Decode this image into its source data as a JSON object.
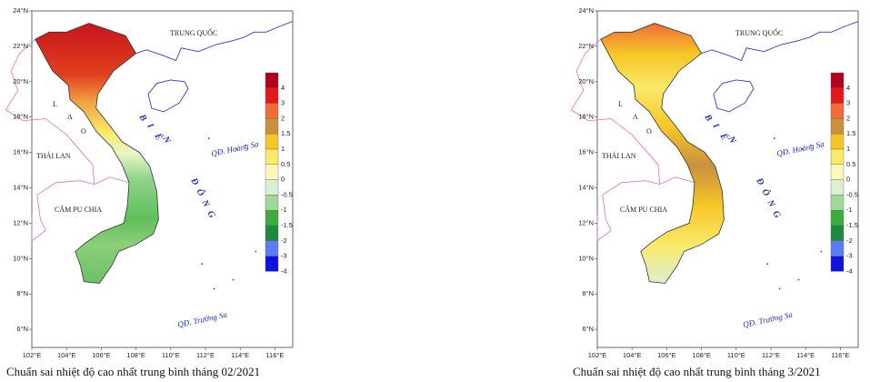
{
  "panels": [
    {
      "caption": "Chuẩn sai nhiệt độ cao nhất trung bình tháng 02/2021"
    },
    {
      "caption": "Chuẩn sai nhiệt độ cao nhất trung bình tháng 3/2021"
    }
  ],
  "map": {
    "lat_labels": [
      "24°N",
      "22°N",
      "20°N",
      "18°N",
      "16°N",
      "14°N",
      "12°N",
      "10°N",
      "8°N",
      "6°N"
    ],
    "lon_labels": [
      "102°E",
      "104°E",
      "106°E",
      "108°E",
      "110°E",
      "112°E",
      "114°E",
      "116°E"
    ],
    "places": {
      "china": "TRUNG QUỐC",
      "laos": [
        "L",
        "A",
        "O"
      ],
      "thailand": "THÁI LAN",
      "cambodia": "CĂM PU CHIA",
      "sea": [
        "B",
        "I",
        "Ể",
        "N",
        "Đ",
        "Ô",
        "N",
        "G"
      ],
      "hoang_sa": "QĐ. Hoàng Sa",
      "truong_sa": "QĐ. Trường Sa"
    },
    "legend": {
      "labels": [
        "4",
        "3",
        "2",
        "1.5",
        "1",
        "0.5",
        "0",
        "-0.5",
        "-1",
        "-1.5",
        "-2",
        "-3",
        "-4"
      ],
      "colors": [
        "#b3001e",
        "#e3191c",
        "#f26a3a",
        "#c9913c",
        "#f6c627",
        "#fbe96a",
        "#fdf7b8",
        "#d9f0d2",
        "#9fd89b",
        "#3dab3d",
        "#1e8a3b",
        "#5a7df5",
        "#1212e0"
      ]
    }
  }
}
